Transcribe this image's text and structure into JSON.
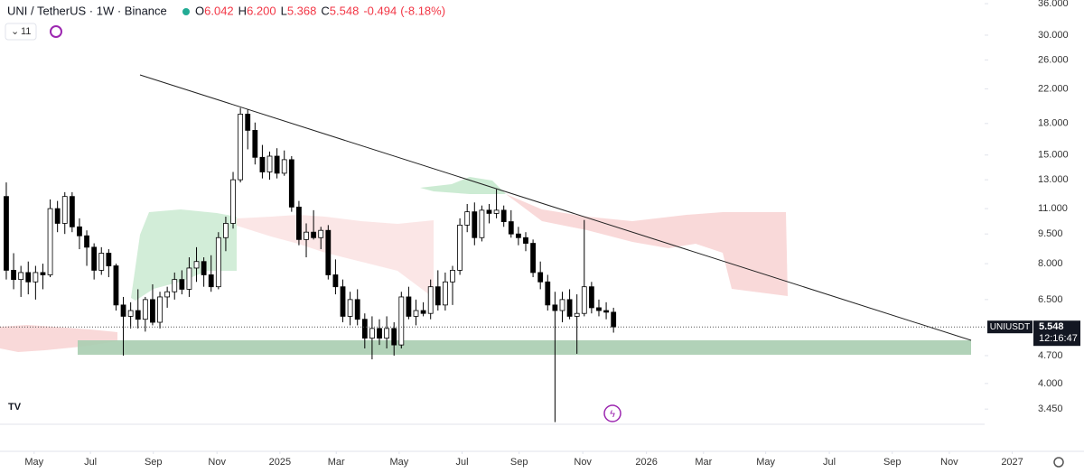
{
  "chart_data": {
    "type": "candlestick",
    "title": "UNI / TetherUS · 1W · Binance",
    "ohlc_labels": [
      "O",
      "H",
      "L",
      "C"
    ],
    "ohlc_value_labels": [
      "6.042",
      "6.200",
      "5.368",
      "5.548"
    ],
    "change": -0.494,
    "change_pct": {
      "value": -8.18,
      "label": "(-8.18%)"
    },
    "indicator_count": 11,
    "symbol_tag": "UNIUSDT",
    "countdown": "12:16:47",
    "up_color": "#ffffff",
    "down_color": "#000000",
    "log_scale": true,
    "grid": false,
    "candles": [
      [
        11.8,
        12.8,
        7.3,
        7.7
      ],
      [
        7.7,
        8.5,
        6.9,
        7.3
      ],
      [
        7.3,
        7.9,
        6.6,
        7.6
      ],
      [
        7.6,
        8.1,
        6.7,
        7.2
      ],
      [
        7.2,
        7.9,
        6.5,
        7.6
      ],
      [
        7.6,
        8.0,
        6.9,
        7.5
      ],
      [
        7.5,
        11.6,
        7.4,
        11.0
      ],
      [
        11.0,
        11.5,
        9.6,
        10.1
      ],
      [
        10.1,
        12.1,
        9.5,
        11.8
      ],
      [
        11.8,
        12.1,
        9.6,
        9.9
      ],
      [
        9.9,
        10.4,
        8.7,
        9.4
      ],
      [
        9.4,
        9.7,
        7.9,
        8.8
      ],
      [
        8.8,
        9.0,
        7.3,
        7.7
      ],
      [
        7.7,
        8.8,
        7.5,
        8.5
      ],
      [
        8.5,
        8.7,
        7.4,
        7.9
      ],
      [
        7.9,
        8.0,
        6.1,
        6.3
      ],
      [
        6.3,
        6.6,
        4.7,
        5.9
      ],
      [
        5.9,
        6.4,
        5.5,
        6.1
      ],
      [
        6.1,
        6.9,
        5.5,
        5.8
      ],
      [
        5.8,
        6.6,
        5.4,
        6.5
      ],
      [
        6.5,
        7.1,
        5.6,
        5.7
      ],
      [
        5.7,
        6.8,
        5.5,
        6.6
      ],
      [
        6.6,
        7.0,
        6.2,
        6.8
      ],
      [
        6.8,
        7.6,
        6.5,
        7.3
      ],
      [
        7.3,
        7.7,
        6.7,
        6.9
      ],
      [
        6.9,
        8.3,
        6.6,
        7.8
      ],
      [
        7.8,
        8.8,
        7.2,
        8.1
      ],
      [
        8.1,
        8.3,
        7.0,
        7.5
      ],
      [
        7.5,
        8.4,
        6.8,
        7.0
      ],
      [
        7.0,
        9.6,
        6.9,
        9.3
      ],
      [
        9.3,
        10.5,
        8.6,
        10.1
      ],
      [
        10.1,
        13.6,
        9.8,
        13.0
      ],
      [
        13.0,
        19.7,
        12.8,
        19.0
      ],
      [
        19.0,
        19.5,
        15.5,
        17.3
      ],
      [
        17.3,
        18.1,
        14.2,
        14.8
      ],
      [
        14.8,
        15.9,
        13.1,
        13.6
      ],
      [
        13.6,
        15.3,
        13.0,
        14.9
      ],
      [
        14.9,
        15.6,
        13.1,
        13.5
      ],
      [
        13.5,
        15.4,
        13.3,
        14.6
      ],
      [
        14.6,
        14.9,
        10.8,
        11.1
      ],
      [
        11.1,
        11.5,
        8.9,
        9.2
      ],
      [
        9.2,
        10.1,
        8.3,
        9.6
      ],
      [
        9.6,
        10.9,
        9.2,
        9.3
      ],
      [
        9.3,
        9.9,
        8.7,
        9.7
      ],
      [
        9.7,
        10.0,
        7.3,
        7.5
      ],
      [
        7.5,
        8.2,
        6.7,
        7.0
      ],
      [
        7.0,
        7.3,
        5.7,
        5.9
      ],
      [
        5.9,
        6.8,
        5.6,
        6.5
      ],
      [
        6.5,
        6.9,
        5.6,
        5.8
      ],
      [
        5.8,
        6.0,
        4.9,
        5.2
      ],
      [
        5.2,
        5.9,
        4.6,
        5.5
      ],
      [
        5.5,
        5.8,
        5.0,
        5.2
      ],
      [
        5.2,
        5.9,
        4.9,
        5.5
      ],
      [
        5.5,
        5.7,
        4.7,
        5.0
      ],
      [
        5.0,
        6.8,
        4.9,
        6.6
      ],
      [
        6.6,
        7.0,
        5.8,
        5.9
      ],
      [
        5.9,
        6.5,
        5.6,
        6.1
      ],
      [
        6.1,
        6.4,
        5.9,
        6.0
      ],
      [
        6.0,
        7.3,
        5.8,
        7.0
      ],
      [
        7.0,
        7.7,
        6.1,
        6.3
      ],
      [
        6.3,
        7.6,
        6.1,
        7.2
      ],
      [
        7.2,
        7.9,
        6.3,
        7.7
      ],
      [
        7.7,
        10.4,
        7.5,
        10.0
      ],
      [
        10.0,
        11.3,
        9.6,
        10.8
      ],
      [
        10.8,
        11.4,
        8.9,
        9.3
      ],
      [
        9.3,
        11.2,
        9.1,
        10.9
      ],
      [
        10.9,
        11.3,
        10.1,
        10.7
      ],
      [
        10.7,
        12.3,
        10.4,
        10.9
      ],
      [
        10.9,
        11.2,
        9.9,
        10.2
      ],
      [
        10.2,
        10.9,
        9.3,
        9.5
      ],
      [
        9.5,
        9.9,
        8.9,
        9.3
      ],
      [
        9.3,
        9.6,
        8.6,
        9.0
      ],
      [
        9.0,
        9.2,
        7.4,
        7.6
      ],
      [
        7.6,
        8.1,
        6.9,
        7.2
      ],
      [
        7.2,
        7.5,
        6.1,
        6.3
      ],
      [
        6.3,
        6.8,
        3.2,
        6.1
      ],
      [
        6.1,
        6.8,
        5.7,
        6.5
      ],
      [
        6.5,
        6.9,
        5.8,
        5.9
      ],
      [
        5.9,
        6.7,
        4.75,
        6.0
      ],
      [
        6.0,
        10.3,
        5.9,
        7.0
      ],
      [
        7.0,
        7.2,
        6.0,
        6.2
      ],
      [
        6.2,
        6.5,
        5.9,
        6.1
      ],
      [
        6.1,
        6.4,
        5.8,
        6.042
      ],
      [
        6.042,
        6.2,
        5.368,
        5.548
      ]
    ],
    "xlim": [
      -0.86,
      139.9
    ],
    "xticks": [
      {
        "value": 3.8,
        "label": "May"
      },
      {
        "value": 11.5,
        "label": "Jul"
      },
      {
        "value": 20.1,
        "label": "Sep"
      },
      {
        "value": 28.8,
        "label": "Nov"
      },
      {
        "value": 37.4,
        "label": "2025"
      },
      {
        "value": 45.1,
        "label": "Mar"
      },
      {
        "value": 53.7,
        "label": "May"
      },
      {
        "value": 62.3,
        "label": "Jul"
      },
      {
        "value": 70.1,
        "label": "Sep"
      },
      {
        "value": 78.8,
        "label": "Nov"
      },
      {
        "value": 87.5,
        "label": "2026"
      },
      {
        "value": 95.3,
        "label": "Mar"
      },
      {
        "value": 103.8,
        "label": "May"
      },
      {
        "value": 112.5,
        "label": "Jul"
      },
      {
        "value": 121.1,
        "label": "Sep"
      },
      {
        "value": 128.9,
        "label": "Nov"
      },
      {
        "value": 137.5,
        "label": "2027"
      }
    ],
    "ylim": [
      3.16,
      36.77
    ],
    "yticks": [
      {
        "value": 36,
        "label": "36.000"
      },
      {
        "value": 30,
        "label": "30.000"
      },
      {
        "value": 26,
        "label": "26.000"
      },
      {
        "value": 22,
        "label": "22.000"
      },
      {
        "value": 18,
        "label": "18.000"
      },
      {
        "value": 15,
        "label": "15.000"
      },
      {
        "value": 13,
        "label": "13.000"
      },
      {
        "value": 11,
        "label": "11.000"
      },
      {
        "value": 9.5,
        "label": "9.500"
      },
      {
        "value": 8,
        "label": "8.000"
      },
      {
        "value": 6.5,
        "label": "6.500"
      },
      {
        "value": 4.7,
        "label": "4.700"
      },
      {
        "value": 4,
        "label": "4.000"
      },
      {
        "value": 3.45,
        "label": "3.450"
      }
    ]
  }
}
